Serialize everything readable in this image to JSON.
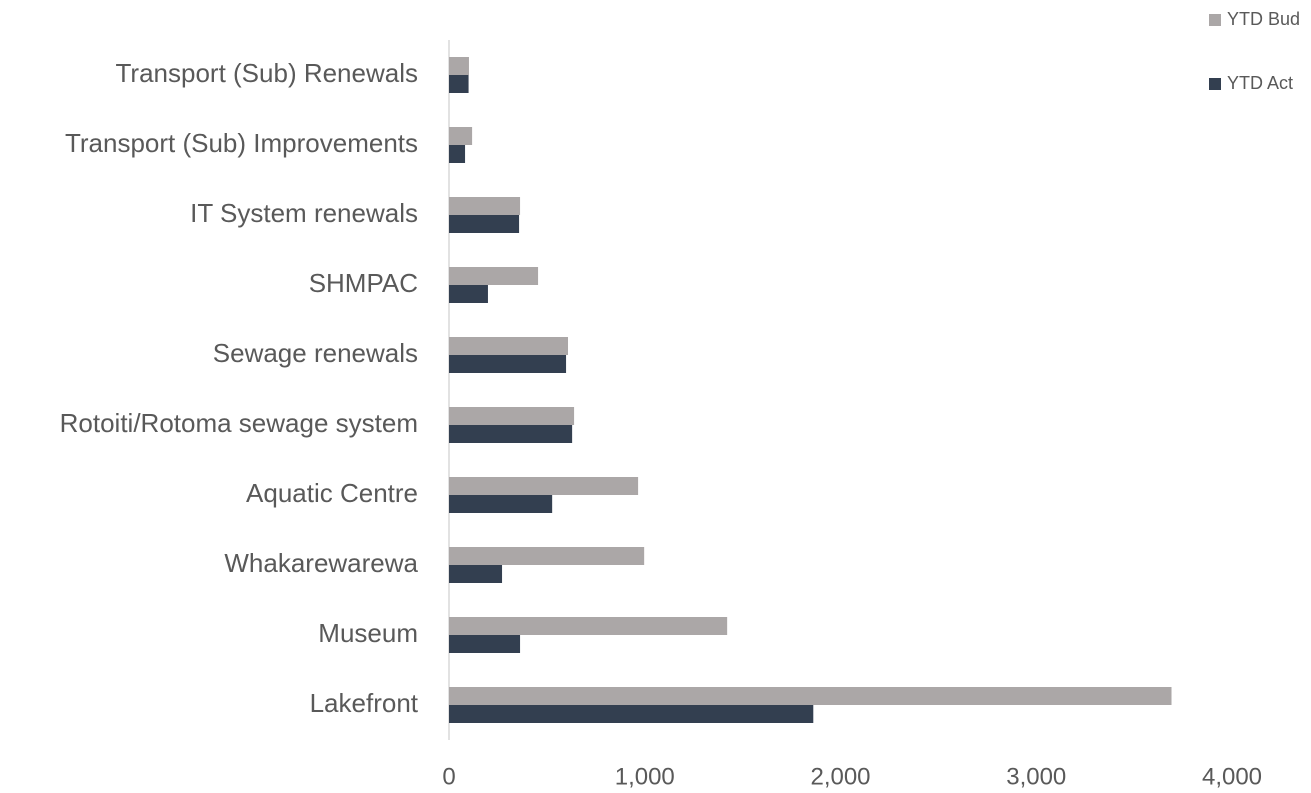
{
  "chart_data": {
    "type": "bar",
    "orientation": "horizontal",
    "categories": [
      "Transport (Sub) Renewals",
      "Transport (Sub) Improvements",
      "IT System renewals",
      "SHMPAC",
      "Sewage renewals",
      "Rotoiti/Rotoma sewage system",
      "Aquatic Centre",
      "Whakarewarewa",
      "Museum",
      "Lakefront"
    ],
    "series": [
      {
        "name": "YTD Bud",
        "color": "#aba7a7",
        "values": [
          102,
          118,
          363,
          455,
          608,
          639,
          966,
          997,
          1421,
          3691
        ]
      },
      {
        "name": "YTD Act",
        "color": "#333f50",
        "values": [
          100,
          82,
          358,
          199,
          598,
          629,
          527,
          271,
          363,
          1861
        ]
      }
    ],
    "xlim": [
      0,
      4000
    ],
    "xticks": [
      0,
      {
        "value": 1000,
        "label": "1,000"
      },
      {
        "value": 2000,
        "label": "2,000"
      },
      {
        "value": 3000,
        "label": "3,000"
      },
      {
        "value": 4000,
        "label": "4,000"
      }
    ],
    "grid": false,
    "legend": "top-right"
  }
}
